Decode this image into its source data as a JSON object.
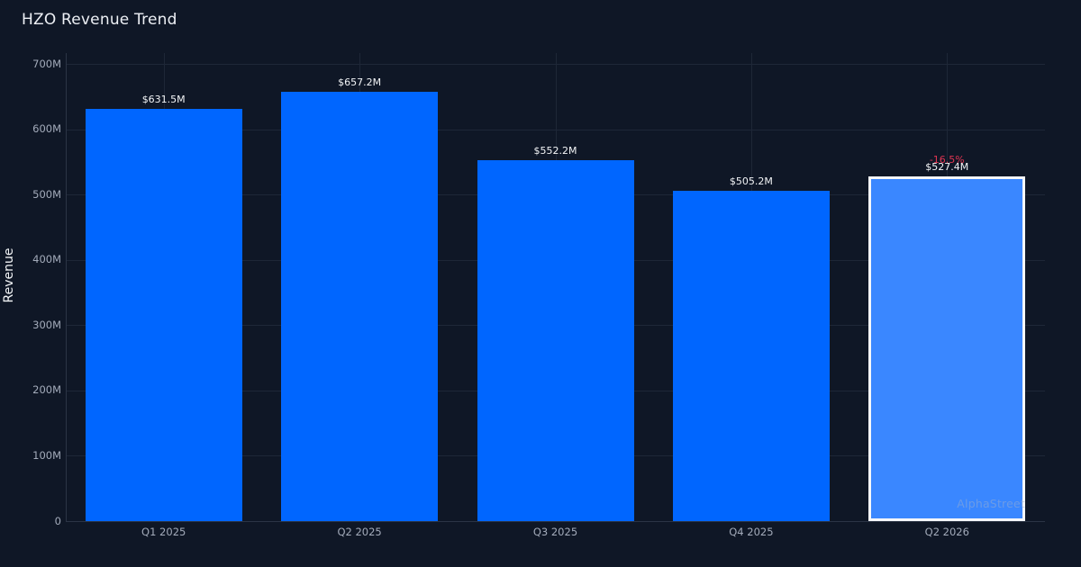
{
  "watermark": "AlphaStreet",
  "colors": {
    "background": "#0f1726",
    "bar": "#0066ff",
    "highlight_bar": "#3a87ff",
    "highlight_border": "#f5f7fa",
    "grid": "#1e2737",
    "axis": "#2b3445",
    "tick_label": "#a3abba",
    "value_label": "#f2f4f6",
    "negative_change": "#e03552",
    "title": "#edf0f5",
    "watermark": "#9db0cf"
  },
  "chart_data": {
    "type": "bar",
    "title": "HZO Revenue Trend",
    "xlabel": "",
    "ylabel": "Revenue",
    "categories": [
      "Q1 2025",
      "Q2 2025",
      "Q3 2025",
      "Q4 2025",
      "Q2 2026"
    ],
    "values": [
      631.5,
      657.2,
      552.2,
      505.2,
      527.4
    ],
    "value_labels": [
      "$631.5M",
      "$657.2M",
      "$552.2M",
      "$505.2M",
      "$527.4M"
    ],
    "unit": "M",
    "ylim": [
      0,
      700
    ],
    "ytick_step": 100,
    "ytick_labels": [
      "0",
      "100M",
      "200M",
      "300M",
      "400M",
      "500M",
      "600M",
      "700M"
    ],
    "grid": true,
    "legend_position": "none",
    "highlight": {
      "index": 4,
      "change_label": "-16.5%",
      "direction": "negative"
    }
  }
}
